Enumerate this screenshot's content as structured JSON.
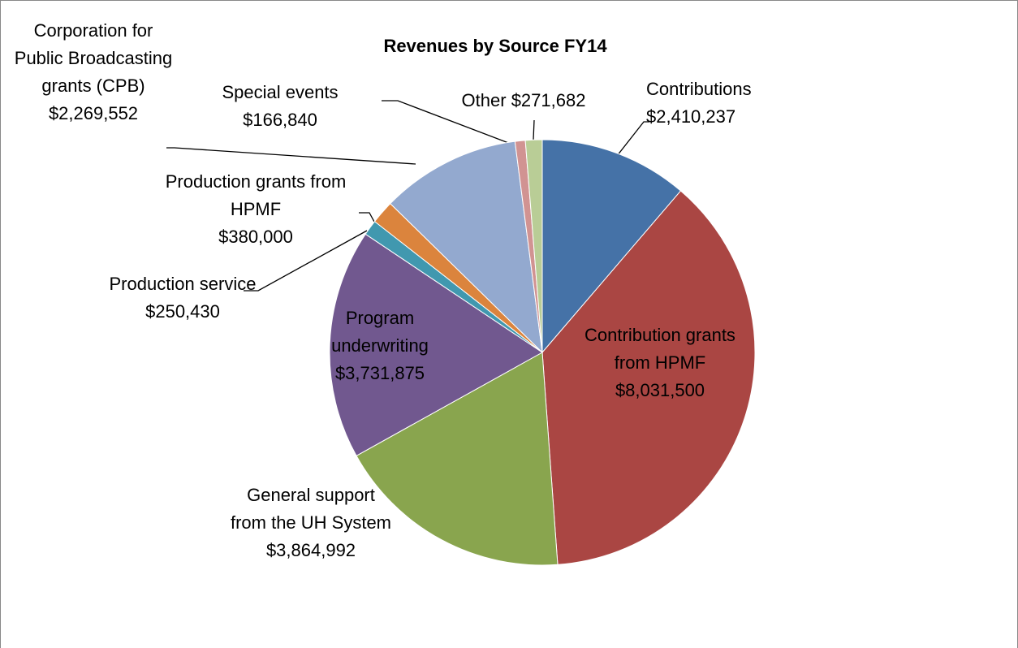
{
  "chart_data": {
    "type": "pie",
    "title": "Revenues by Source FY14",
    "categories": [
      "Contributions",
      "Contribution grants from HPMF",
      "General support from the UH System",
      "Program underwriting",
      "Production service",
      "Production grants from HPMF",
      "Corporation for Public Broadcasting grants (CPB)",
      "Special events",
      "Other"
    ],
    "values": [
      2410237,
      8031500,
      3864992,
      3731875,
      250430,
      380000,
      2269552,
      166840,
      271682
    ],
    "value_labels": [
      "$2,410,237",
      "$8,031,500",
      "$3,864,992",
      "$3,731,875",
      "$250,430",
      "$380,000",
      "$2,269,552",
      "$166,840",
      "$271,682"
    ],
    "colors": [
      "#4572a7",
      "#aa4643",
      "#89a54e",
      "#71588f",
      "#4198af",
      "#db843d",
      "#93a9cf",
      "#d19392",
      "#b9cd96"
    ]
  }
}
